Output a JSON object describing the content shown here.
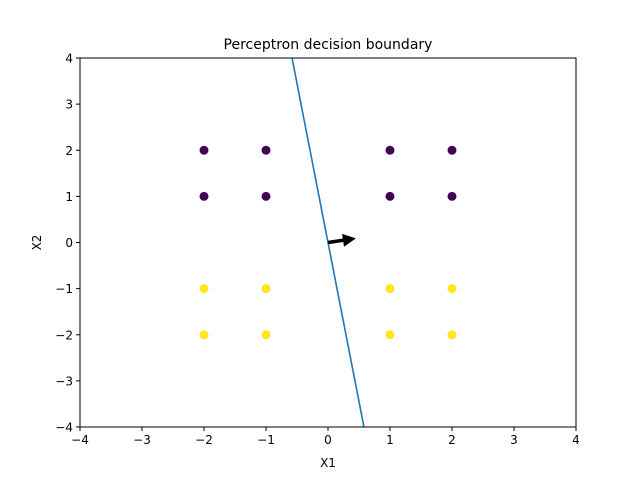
{
  "chart_data": {
    "type": "scatter",
    "title": "Perceptron decision boundary",
    "xlabel": "X1",
    "ylabel": "X2",
    "xlim": [
      -4,
      4
    ],
    "ylim": [
      -4,
      4
    ],
    "xticks": [
      -4,
      -3,
      -2,
      -1,
      0,
      1,
      2,
      3,
      4
    ],
    "yticks": [
      -4,
      -3,
      -2,
      -1,
      0,
      1,
      2,
      3,
      4
    ],
    "grid": false,
    "legend": "none",
    "series": [
      {
        "color": "#440154",
        "points": [
          [
            -2,
            2
          ],
          [
            -1,
            2
          ],
          [
            1,
            2
          ],
          [
            2,
            2
          ],
          [
            -2,
            1
          ],
          [
            -1,
            1
          ],
          [
            1,
            1
          ],
          [
            2,
            1
          ]
        ]
      },
      {
        "color": "#fde725",
        "points": [
          [
            -2,
            -1
          ],
          [
            -1,
            -1
          ],
          [
            1,
            -1
          ],
          [
            2,
            -1
          ],
          [
            -2,
            -2
          ],
          [
            -1,
            -2
          ],
          [
            1,
            -2
          ],
          [
            2,
            -2
          ]
        ]
      }
    ],
    "boundary_line": {
      "color": "#1f77b4",
      "points": [
        [
          0.58,
          -4
        ],
        [
          -0.58,
          4
        ]
      ]
    },
    "weight_arrow": {
      "color": "#000000",
      "from": [
        0,
        0
      ],
      "to": [
        0.45,
        0.09
      ]
    }
  }
}
